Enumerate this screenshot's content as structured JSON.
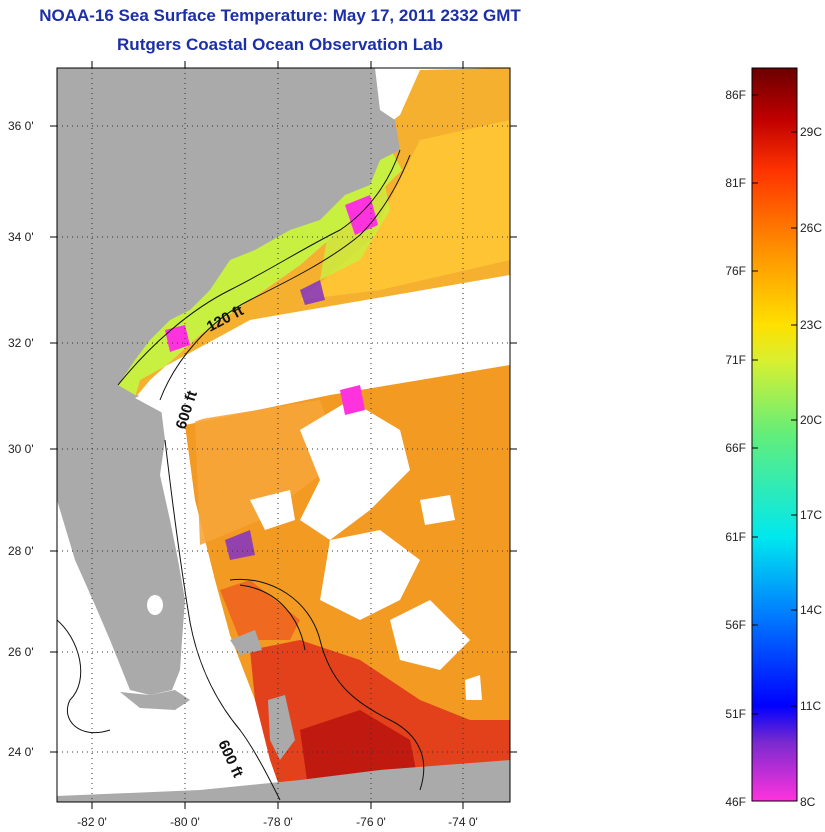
{
  "title": {
    "line1": "NOAA-16 Sea Surface Temperature:  May 17, 2011 2332 GMT",
    "line2": "Rutgers Coastal Ocean Observation Lab"
  },
  "map": {
    "lat_labels": [
      "36 0'",
      "34 0'",
      "32 0'",
      "30 0'",
      "28 0'",
      "26 0'",
      "24 0'"
    ],
    "lat_values": [
      36,
      34,
      32,
      30,
      28,
      26,
      24
    ],
    "lon_labels": [
      "-82 0'",
      "-80 0'",
      "-78 0'",
      "-76 0'",
      "-74 0'"
    ],
    "lon_values": [
      -82,
      -80,
      -78,
      -76,
      -74
    ],
    "lat_range": [
      23,
      37
    ],
    "lon_range": [
      -83,
      -73
    ],
    "contour_labels": [
      "120 ft",
      "600 ft",
      "600 ft"
    ],
    "colors": {
      "land": "#aaaaaa",
      "coastal_water": "#c8f040",
      "warm_water": "#f39a22",
      "gulf_stream": "#e2411b",
      "cloud": "#ffffff"
    }
  },
  "colorbar": {
    "fahrenheit_labels": [
      "86F",
      "81F",
      "76F",
      "71F",
      "66F",
      "61F",
      "56F",
      "51F",
      "46F"
    ],
    "celsius_labels": [
      "29C",
      "26C",
      "23C",
      "20C",
      "17C",
      "14C",
      "11C",
      "8C"
    ],
    "stops": [
      "#ff33dd",
      "#7a2acf",
      "#0000ff",
      "#0078ff",
      "#00e8ee",
      "#62ee7a",
      "#d8f030",
      "#ffe000",
      "#ff9200",
      "#ff3300",
      "#c00000",
      "#6a0000"
    ]
  }
}
